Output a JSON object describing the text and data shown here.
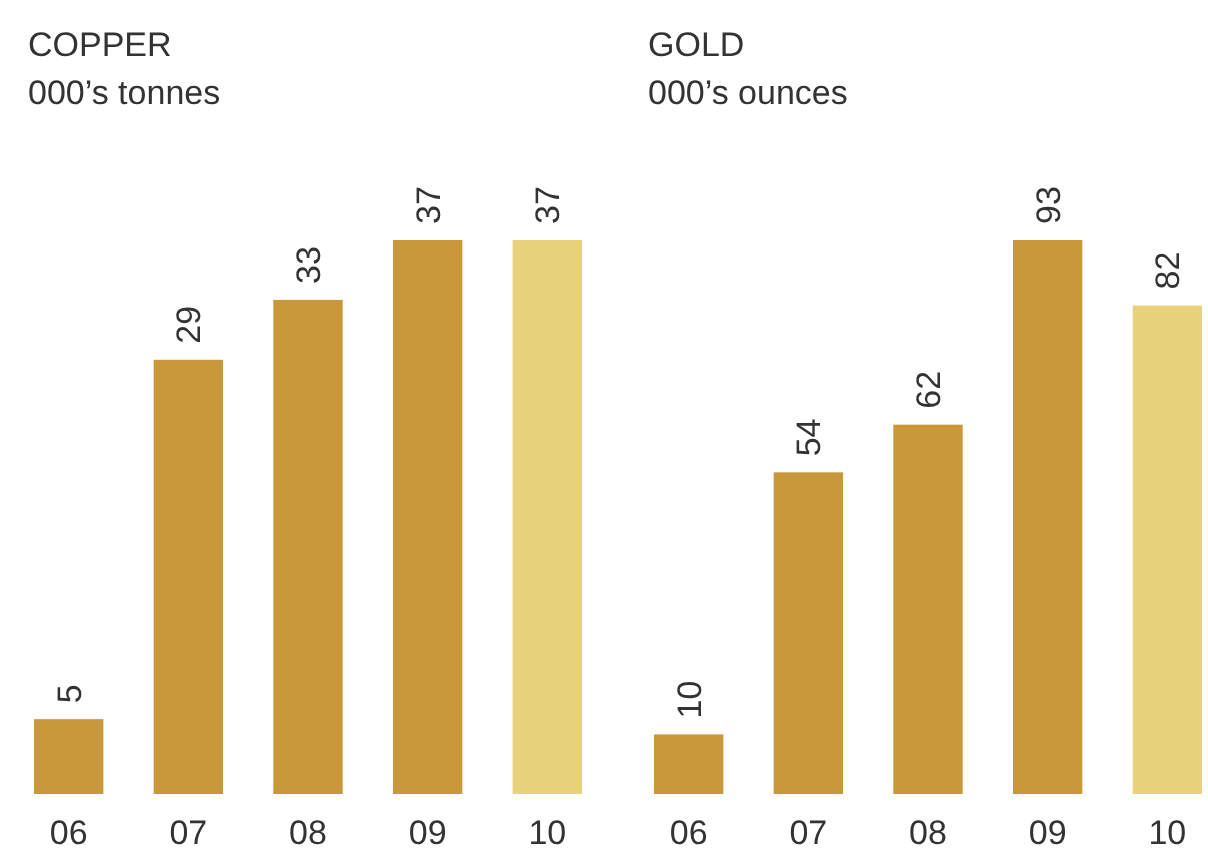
{
  "chart_data": [
    {
      "type": "bar",
      "title": "COPPER",
      "subtitle": "000’s tonnes",
      "categories": [
        "06",
        "07",
        "08",
        "09",
        "10"
      ],
      "values": [
        5,
        29,
        33,
        37,
        37
      ],
      "colors": [
        "#c9983a",
        "#c9983a",
        "#c9983a",
        "#c9983a",
        "#e9d27c"
      ],
      "data_labels": true
    },
    {
      "type": "bar",
      "title": "GOLD",
      "subtitle": "000’s ounces",
      "categories": [
        "06",
        "07",
        "08",
        "09",
        "10"
      ],
      "values": [
        10,
        54,
        62,
        93,
        82
      ],
      "colors": [
        "#c9983a",
        "#c9983a",
        "#c9983a",
        "#c9983a",
        "#e9d27c"
      ],
      "data_labels": true
    }
  ]
}
